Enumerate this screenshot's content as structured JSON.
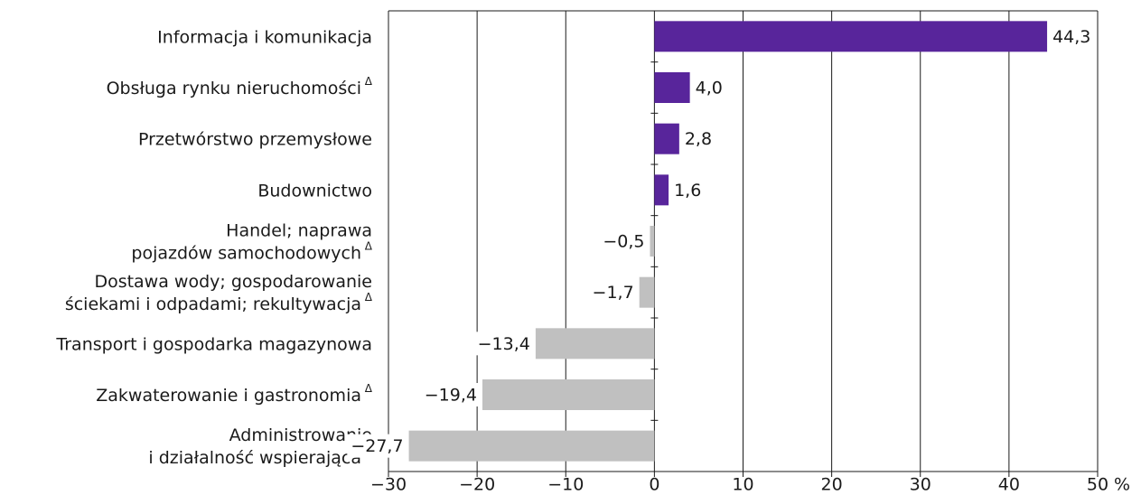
{
  "chart_data": {
    "type": "barh",
    "categories": [
      "Informacja i komunikacja",
      "Obsługa rynku nieruchomościΔ",
      "Przetwórstwo przemysłowe",
      "Budownictwo",
      "Handel; naprawa\npojazdów samochodowychΔ",
      "Dostawa wody; gospodarowanie\nściekami i odpadami; rekultywacjaΔ",
      "Transport i gospodarka magazynowa",
      "Zakwaterowanie i gastronomiaΔ",
      "Administrowanie\ni działalność wspierającaΔ"
    ],
    "values": [
      44.3,
      4.0,
      2.8,
      1.6,
      -0.5,
      -1.7,
      -13.4,
      -19.4,
      -27.7
    ],
    "value_labels": [
      "44,3",
      "4,0",
      "2,8",
      "1,6",
      "−0,5",
      "−1,7",
      "−13,4",
      "−19,4",
      "−27,7"
    ],
    "colors": [
      "#58259b",
      "#58259b",
      "#58259b",
      "#58259b",
      "#c0c0c0",
      "#c0c0c0",
      "#c0c0c0",
      "#c0c0c0",
      "#c0c0c0"
    ],
    "xlim": [
      -30,
      50
    ],
    "xticks": [
      {
        "value": -30,
        "label": "−30"
      },
      {
        "value": -20,
        "label": "−20"
      },
      {
        "value": -10,
        "label": "−10"
      },
      0,
      10,
      20,
      30,
      40,
      50
    ],
    "xlabel": "%",
    "grid": true
  }
}
